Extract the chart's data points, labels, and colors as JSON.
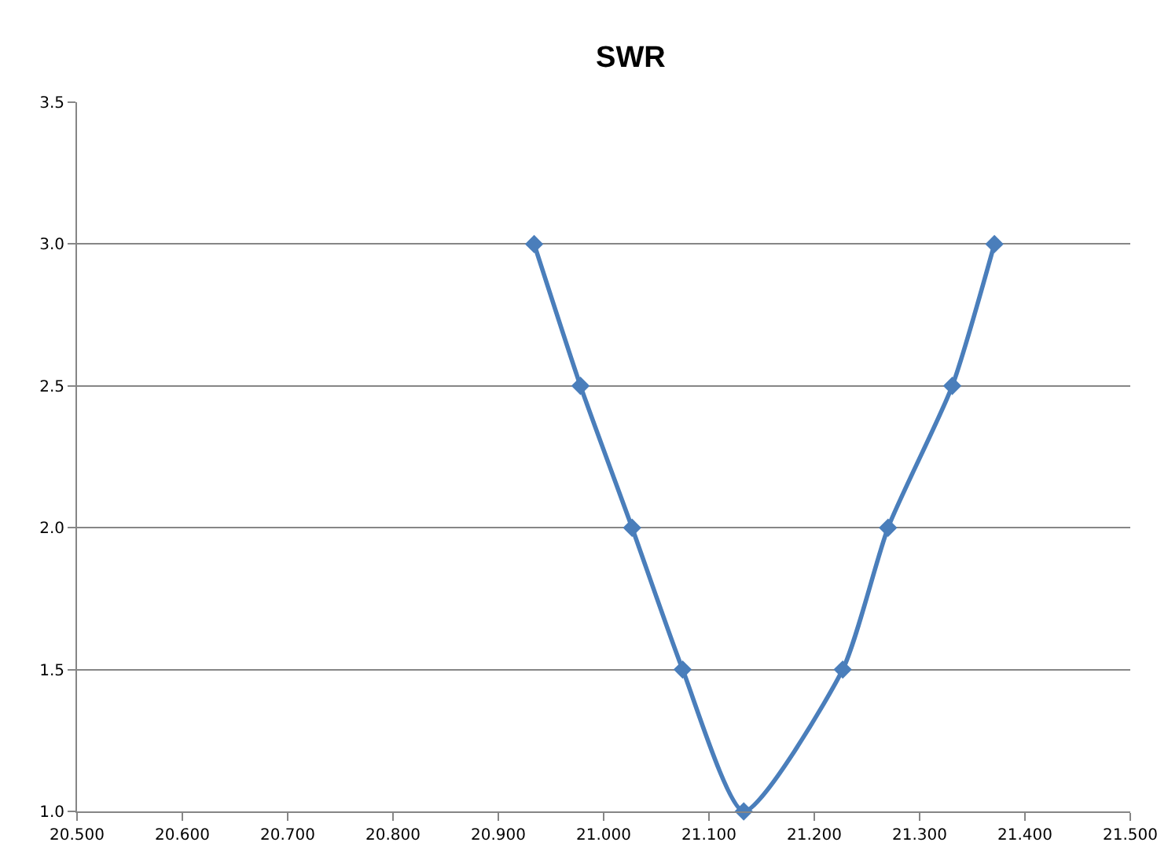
{
  "chart_data": {
    "type": "line",
    "title": "SWR",
    "x": [
      20.934,
      20.978,
      21.027,
      21.075,
      21.133,
      21.227,
      21.27,
      21.331,
      21.371
    ],
    "series": [
      {
        "color": "#4a7ebb",
        "values": [
          3.0,
          2.5,
          2.0,
          1.5,
          1.0,
          1.5,
          2.0,
          2.5,
          3.0
        ]
      }
    ],
    "xlim": [
      20.5,
      21.5
    ],
    "xticks": [
      {
        "value": 20.5,
        "label": "20.500"
      },
      {
        "value": 20.6,
        "label": "20.600"
      },
      {
        "value": 20.7,
        "label": "20.700"
      },
      {
        "value": 20.8,
        "label": "20.800"
      },
      {
        "value": 20.9,
        "label": "20.900"
      },
      {
        "value": 21.0,
        "label": "21.000"
      },
      {
        "value": 21.1,
        "label": "21.100"
      },
      {
        "value": 21.2,
        "label": "21.200"
      },
      {
        "value": 21.3,
        "label": "21.300"
      },
      {
        "value": 21.4,
        "label": "21.400"
      },
      {
        "value": 21.5,
        "label": "21.500"
      }
    ],
    "ylim": [
      1.0,
      3.5
    ],
    "yticks": [
      {
        "value": 1.0,
        "label": "1.0"
      },
      {
        "value": 1.5,
        "label": "1.5"
      },
      {
        "value": 2.0,
        "label": "2.0"
      },
      {
        "value": 2.5,
        "label": "2.5"
      },
      {
        "value": 3.0,
        "label": "3.0"
      },
      {
        "value": 3.5,
        "label": "3.5"
      }
    ],
    "grid": "y",
    "marker": "diamond",
    "line_style": "solid"
  }
}
